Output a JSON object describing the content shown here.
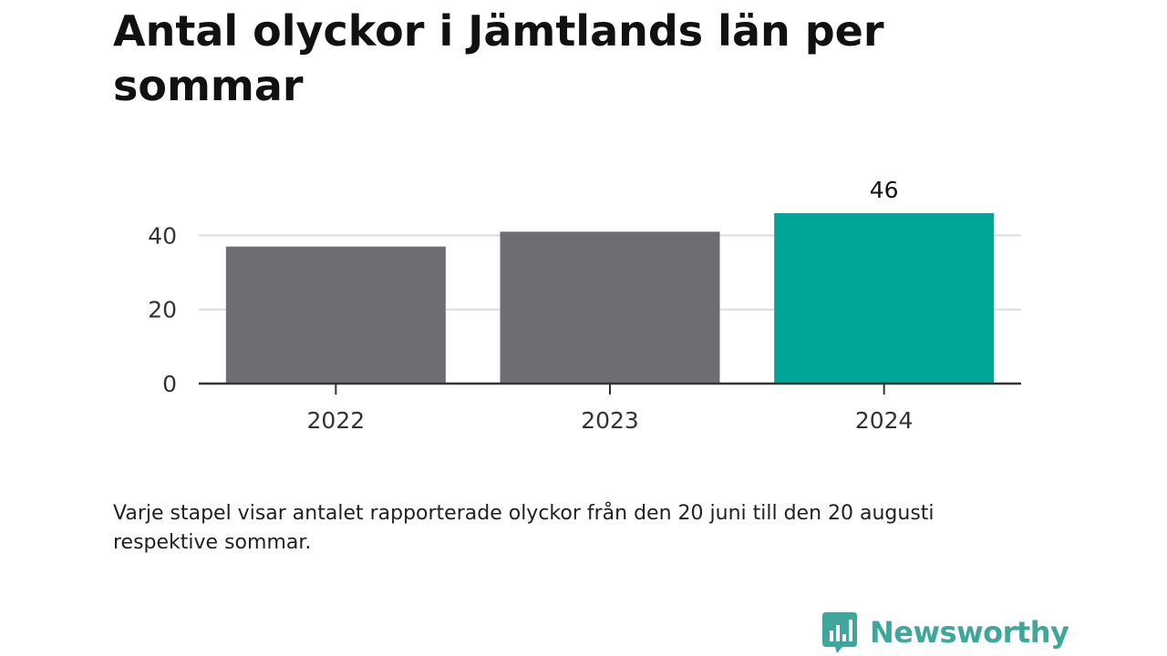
{
  "title": "Antal olyckor i Jämtlands län per sommar",
  "note": "Varje stapel visar antalet rapporterade olyckor från den 20 juni till den 20 augusti respektive sommar.",
  "brand": "Newsworthy",
  "colors": {
    "bar_default": "#6e6d72",
    "bar_highlight": "#00a59a",
    "brand": "#3ea69a",
    "gridline": "#dcdcdc",
    "axis": "#333333"
  },
  "chart_data": {
    "type": "bar",
    "categories": [
      "2022",
      "2023",
      "2024"
    ],
    "values": [
      37,
      41,
      46
    ],
    "highlight_index": 2,
    "value_labels": [
      {
        "index": 2,
        "text": "46"
      }
    ],
    "yticks": [
      0,
      20,
      40
    ],
    "ylim": [
      0,
      46
    ],
    "grid": true,
    "xlabel": "",
    "ylabel": ""
  }
}
